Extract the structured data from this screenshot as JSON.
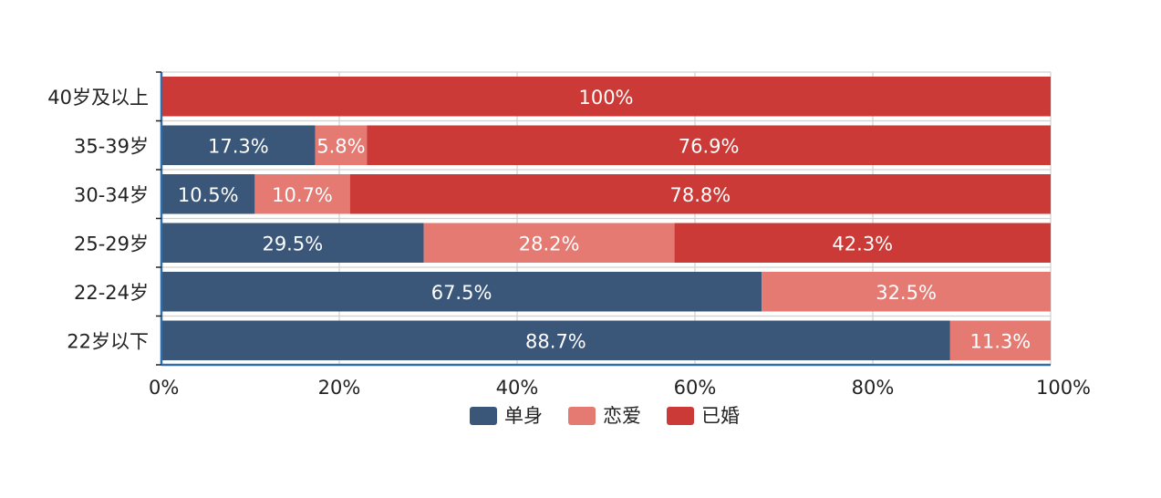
{
  "chart_data": {
    "type": "bar",
    "orientation": "horizontal",
    "stacked": true,
    "categories": [
      "40岁及以上",
      "35-39岁",
      "30-34岁",
      "25-29岁",
      "22-24岁",
      "22岁以下"
    ],
    "series": [
      {
        "name": "单身",
        "color": "#3a5679",
        "values": [
          0,
          17.3,
          10.5,
          29.5,
          67.5,
          88.7
        ],
        "labels": [
          "",
          "17.3%",
          "10.5%",
          "29.5%",
          "67.5%",
          "88.7%"
        ]
      },
      {
        "name": "恋爱",
        "color": "#e47a72",
        "values": [
          0,
          5.8,
          10.7,
          28.2,
          32.5,
          11.3
        ],
        "labels": [
          "",
          "5.8%",
          "10.7%",
          "28.2%",
          "32.5%",
          "11.3%"
        ]
      },
      {
        "name": "已婚",
        "color": "#cb3a36",
        "values": [
          100,
          76.9,
          78.8,
          42.3,
          0,
          0
        ],
        "labels": [
          "100%",
          "76.9%",
          "78.8%",
          "42.3%",
          "",
          ""
        ]
      }
    ],
    "xlim": [
      0,
      100
    ],
    "xticks": [
      "0%",
      "20%",
      "40%",
      "60%",
      "80%",
      "100%"
    ],
    "grid": true,
    "legend": "bottom-center",
    "axis_color": "#2f6ea8",
    "grid_color": "#d0d0d0"
  }
}
